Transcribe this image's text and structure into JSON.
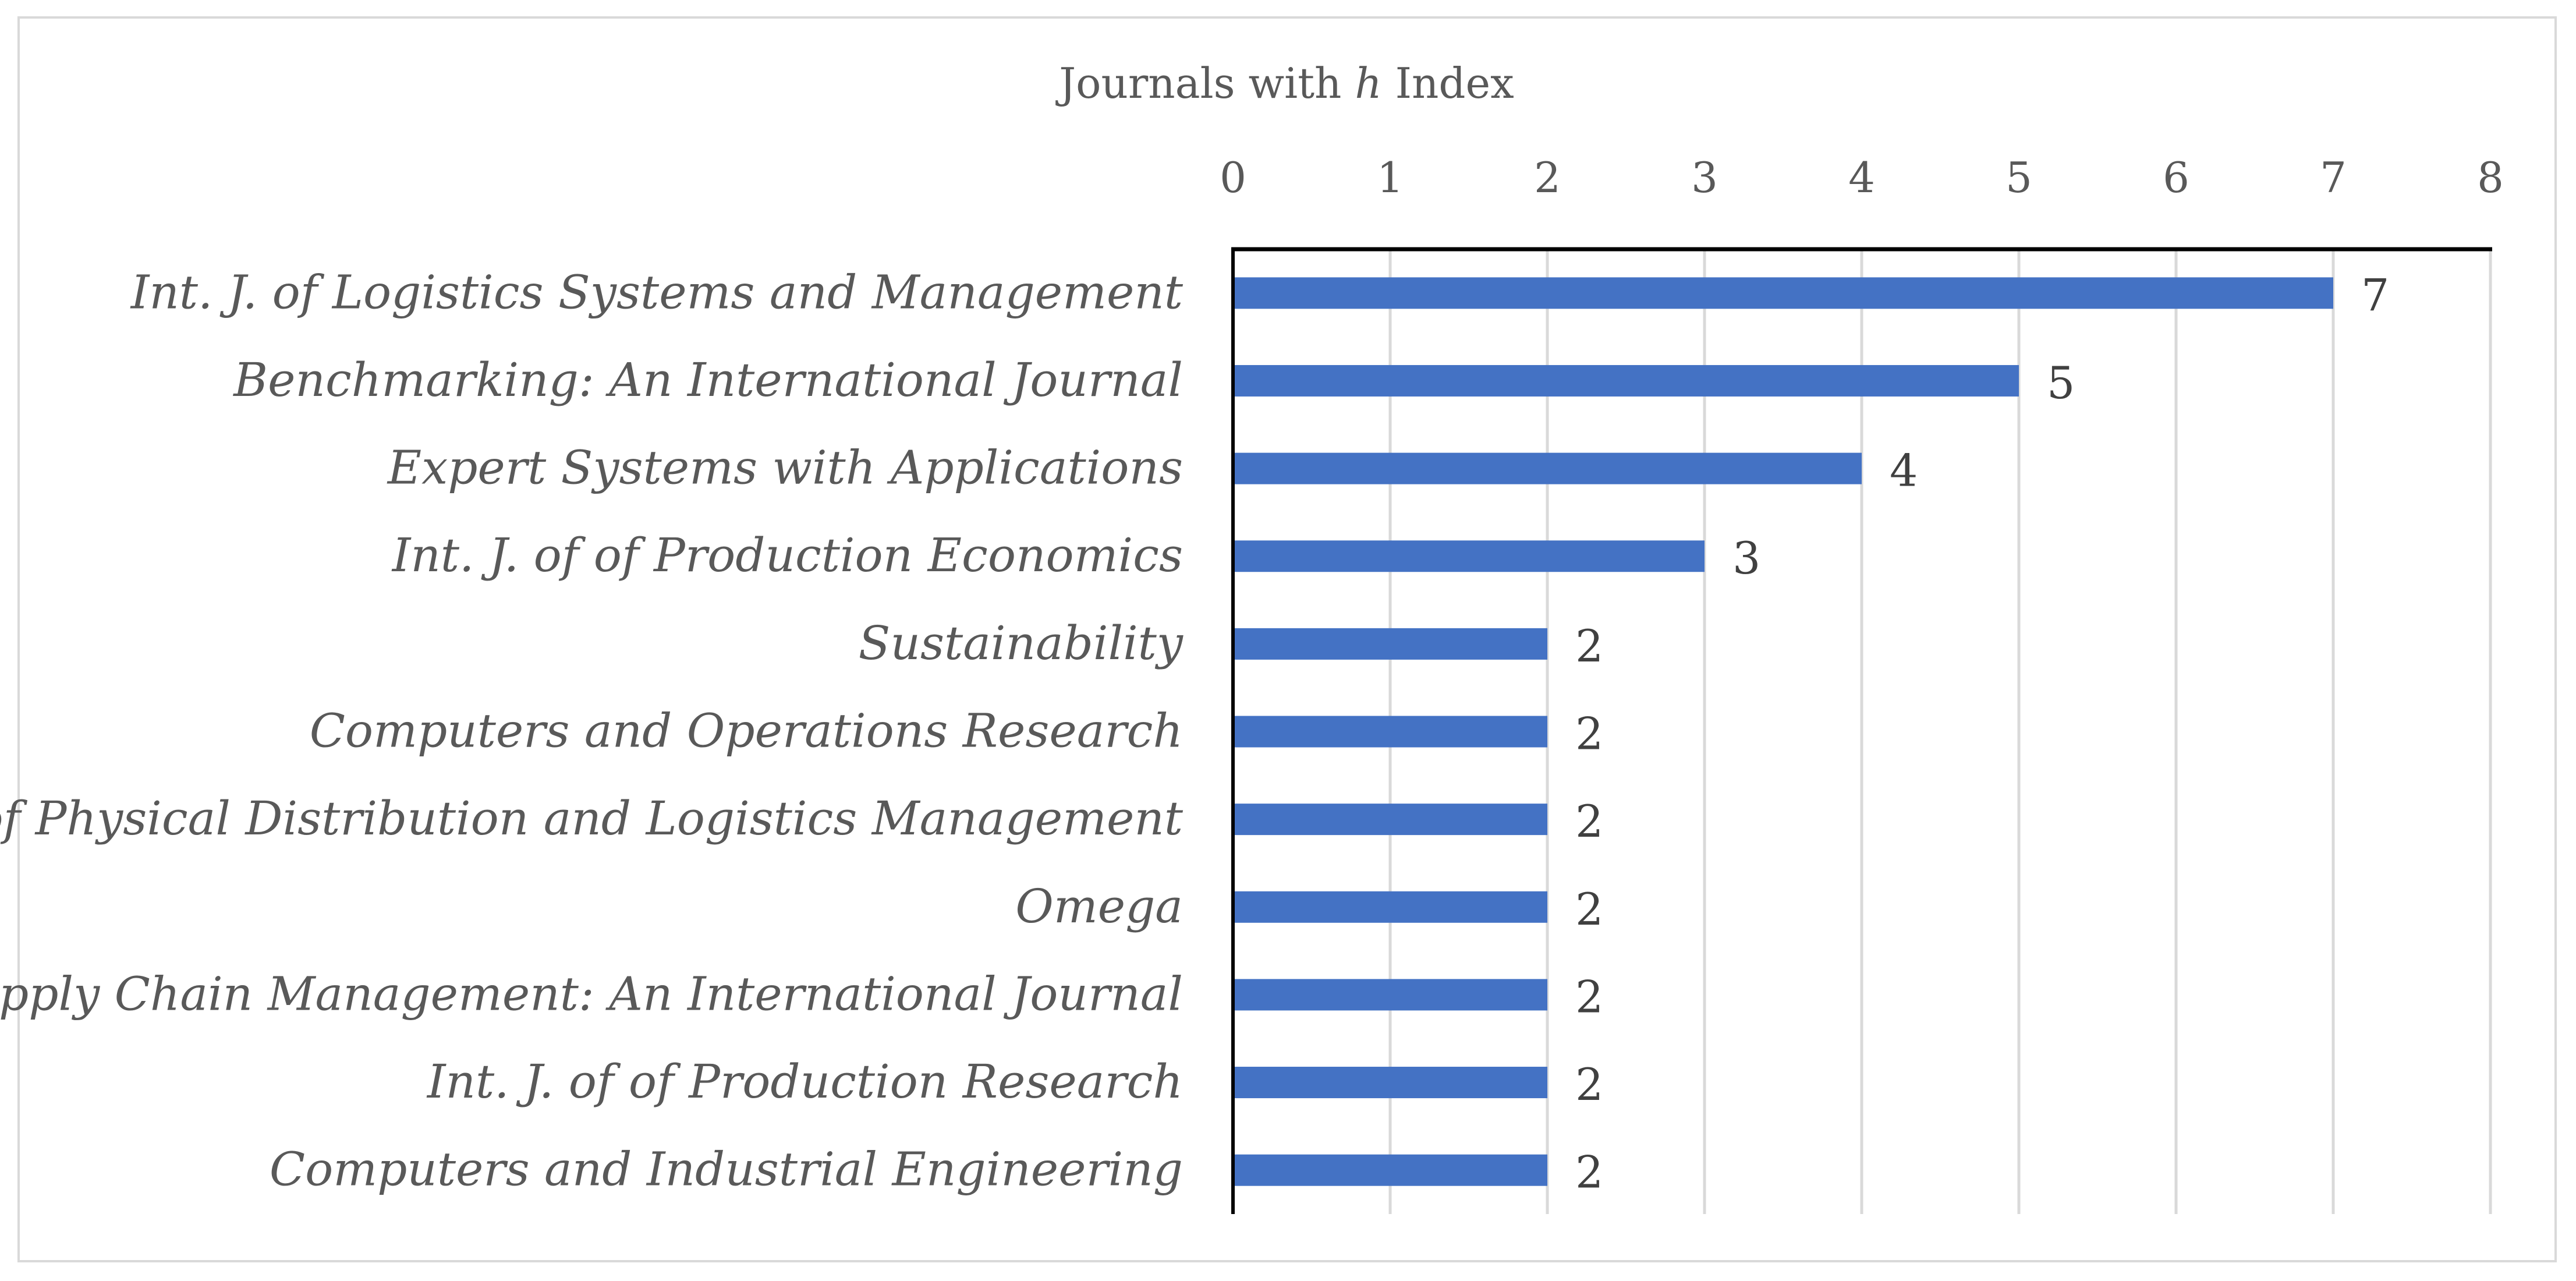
{
  "chart_data": {
    "type": "bar",
    "orientation": "horizontal",
    "title_prefix": "Journals with ",
    "title_italic": "h",
    "title_suffix": " Index",
    "categories": [
      "Int. J. of Logistics Systems and Management",
      "Benchmarking: An International Journal",
      "Expert Systems with Applications",
      "Int. J. of of Production Economics",
      "Sustainability",
      "Computers and Operations Research",
      "Int. J. of Physical Distribution and Logistics Management",
      "Omega",
      "Supply Chain Management: An International Journal",
      "Int. J. of of Production Research",
      "Computers and Industrial Engineering"
    ],
    "values": [
      7,
      5,
      4,
      3,
      2,
      2,
      2,
      2,
      2,
      2,
      2
    ],
    "xlim": [
      0,
      8
    ],
    "xticks": [
      0,
      1,
      2,
      3,
      4,
      5,
      6,
      7,
      8
    ],
    "x_axis_position": "top",
    "grid": true,
    "bar_color": "#4472c4",
    "grid_color": "#d9d9d9",
    "axis_color": "#000000",
    "text_color": "#595959"
  }
}
